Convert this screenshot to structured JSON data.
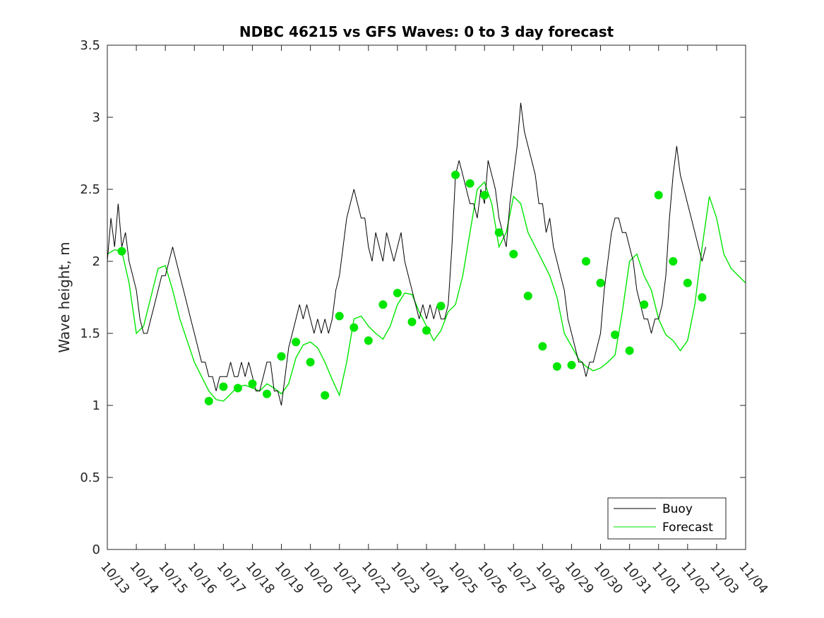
{
  "chart_data": {
    "type": "line",
    "title": "NDBC 46215 vs GFS Waves: 0 to 3 day forecast",
    "xlabel": "",
    "ylabel": "Wave height, m",
    "ylim": [
      0,
      3.5
    ],
    "xlim": [
      0,
      22
    ],
    "y_ticks": [
      0,
      0.5,
      1,
      1.5,
      2,
      2.5,
      3,
      3.5
    ],
    "y_tick_labels": [
      "0",
      "0.5",
      "1",
      "1.5",
      "2",
      "2.5",
      "3",
      "3.5"
    ],
    "x_tick_labels": [
      "10/13",
      "10/14",
      "10/15",
      "10/16",
      "10/17",
      "10/18",
      "10/19",
      "10/20",
      "10/21",
      "10/22",
      "10/23",
      "10/24",
      "10/25",
      "10/26",
      "10/27",
      "10/28",
      "10/29",
      "10/30",
      "10/31",
      "11/01",
      "11/02",
      "11/03",
      "11/04"
    ],
    "legend": {
      "location": "bottom-right",
      "entries": [
        {
          "label": "Buoy",
          "color": "#000000"
        },
        {
          "label": "Forecast",
          "color": "#00e600"
        }
      ]
    },
    "colors": {
      "buoy": "#000000",
      "forecast": "#00e600",
      "marker": "#00e600"
    },
    "series": [
      {
        "name": "Buoy",
        "x_start": 0,
        "x_step": 0.125,
        "values": [
          2.0,
          2.3,
          2.1,
          2.4,
          2.1,
          2.2,
          2.0,
          1.9,
          1.8,
          1.6,
          1.5,
          1.5,
          1.6,
          1.7,
          1.8,
          1.9,
          1.9,
          2.0,
          2.1,
          2.0,
          1.9,
          1.8,
          1.7,
          1.6,
          1.5,
          1.4,
          1.3,
          1.3,
          1.2,
          1.2,
          1.1,
          1.2,
          1.2,
          1.2,
          1.3,
          1.2,
          1.2,
          1.3,
          1.2,
          1.3,
          1.2,
          1.1,
          1.1,
          1.2,
          1.3,
          1.3,
          1.1,
          1.1,
          1.0,
          1.2,
          1.4,
          1.5,
          1.6,
          1.7,
          1.6,
          1.7,
          1.6,
          1.5,
          1.6,
          1.5,
          1.6,
          1.5,
          1.6,
          1.8,
          1.9,
          2.1,
          2.3,
          2.4,
          2.5,
          2.4,
          2.3,
          2.3,
          2.1,
          2.0,
          2.2,
          2.1,
          2.0,
          2.2,
          2.1,
          2.0,
          2.1,
          2.2,
          2.0,
          1.9,
          1.8,
          1.7,
          1.6,
          1.7,
          1.6,
          1.7,
          1.6,
          1.7,
          1.6,
          1.6,
          1.7,
          2.1,
          2.6,
          2.7,
          2.6,
          2.5,
          2.4,
          2.4,
          2.3,
          2.5,
          2.4,
          2.7,
          2.6,
          2.5,
          2.3,
          2.2,
          2.1,
          2.4,
          2.6,
          2.8,
          3.1,
          2.9,
          2.8,
          2.7,
          2.6,
          2.4,
          2.4,
          2.2,
          2.3,
          2.1,
          2.0,
          1.9,
          1.8,
          1.6,
          1.5,
          1.4,
          1.3,
          1.3,
          1.2,
          1.3,
          1.3,
          1.4,
          1.5,
          1.8,
          2.0,
          2.2,
          2.3,
          2.3,
          2.2,
          2.2,
          2.1,
          2.0,
          1.8,
          1.7,
          1.6,
          1.6,
          1.5,
          1.6,
          1.6,
          1.7,
          1.9,
          2.3,
          2.6,
          2.8,
          2.6,
          2.5,
          2.4,
          2.3,
          2.2,
          2.1,
          2.0,
          2.1
        ]
      },
      {
        "name": "Forecast",
        "x": [
          0,
          0.25,
          0.5,
          0.75,
          1,
          1.25,
          1.5,
          1.75,
          2,
          2.25,
          2.5,
          2.75,
          3,
          3.25,
          3.5,
          3.75,
          4,
          4.25,
          4.5,
          4.75,
          5,
          5.25,
          5.5,
          5.75,
          6,
          6.25,
          6.5,
          6.75,
          7,
          7.25,
          7.5,
          7.75,
          8,
          8.25,
          8.5,
          8.75,
          9,
          9.25,
          9.5,
          9.75,
          10,
          10.25,
          10.5,
          10.75,
          11,
          11.25,
          11.5,
          11.75,
          12,
          12.25,
          12.5,
          12.75,
          13,
          13.25,
          13.5,
          13.75,
          14,
          14.25,
          14.5,
          14.75,
          15,
          15.25,
          15.5,
          15.75,
          16,
          16.25,
          16.5,
          16.75,
          17,
          17.25,
          17.5,
          17.75,
          18,
          18.25,
          18.5,
          18.75,
          19,
          19.25,
          19.5,
          19.75,
          20,
          20.25,
          20.5,
          20.75,
          21,
          21.25,
          21.5,
          21.75,
          22
        ],
        "values": [
          2.05,
          2.08,
          2.07,
          1.85,
          1.5,
          1.55,
          1.75,
          1.95,
          1.97,
          1.8,
          1.6,
          1.45,
          1.3,
          1.2,
          1.1,
          1.04,
          1.03,
          1.08,
          1.13,
          1.14,
          1.12,
          1.1,
          1.15,
          1.12,
          1.08,
          1.15,
          1.33,
          1.42,
          1.44,
          1.4,
          1.3,
          1.18,
          1.07,
          1.3,
          1.6,
          1.62,
          1.55,
          1.5,
          1.46,
          1.55,
          1.7,
          1.78,
          1.77,
          1.65,
          1.55,
          1.45,
          1.52,
          1.65,
          1.7,
          1.9,
          2.2,
          2.5,
          2.55,
          2.4,
          2.1,
          2.2,
          2.45,
          2.4,
          2.2,
          2.1,
          2.0,
          1.9,
          1.75,
          1.5,
          1.41,
          1.32,
          1.27,
          1.24,
          1.26,
          1.3,
          1.35,
          1.65,
          2.0,
          2.05,
          1.9,
          1.8,
          1.6,
          1.49,
          1.45,
          1.38,
          1.45,
          1.7,
          2.1,
          2.45,
          2.3,
          2.05,
          1.95,
          1.9,
          1.85
        ]
      }
    ],
    "markers": {
      "x": [
        0.5,
        3.5,
        4,
        4.5,
        5,
        5.5,
        6,
        6.5,
        7,
        7.5,
        8,
        8.5,
        9,
        9.5,
        10,
        10.5,
        11,
        11.5,
        12,
        12.5,
        13,
        13.5,
        14,
        14.5,
        15,
        15.5,
        16,
        16.5,
        17,
        17.5,
        18,
        18.5,
        19,
        19.5,
        20,
        20.5
      ],
      "values": [
        2.07,
        1.03,
        1.13,
        1.12,
        1.15,
        1.08,
        1.34,
        1.44,
        1.3,
        1.07,
        1.62,
        1.54,
        1.45,
        1.7,
        1.78,
        1.58,
        1.52,
        1.69,
        2.6,
        2.54,
        2.46,
        2.2,
        2.05,
        1.76,
        1.41,
        1.27,
        1.28,
        2.0,
        1.85,
        1.49,
        1.38,
        1.7,
        2.46,
        2.0,
        1.85,
        1.75
      ]
    }
  }
}
